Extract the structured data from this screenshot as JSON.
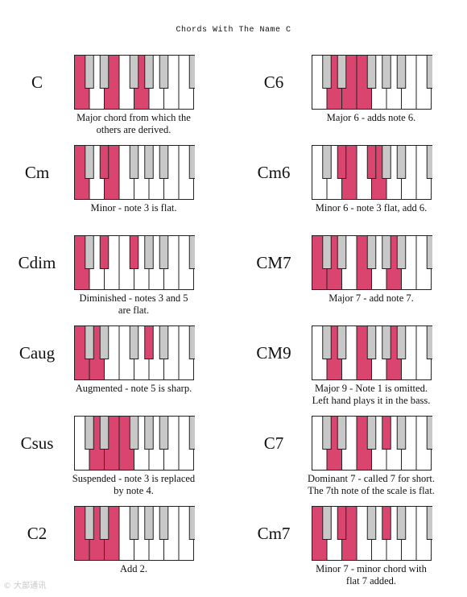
{
  "title": "Chords With The Name C",
  "colors": {
    "highlight": "#d9456e",
    "black_key": "#c8c8c8",
    "white_key": "#ffffff",
    "outline": "#222222"
  },
  "chords": [
    {
      "name": "C",
      "description": [
        "Major chord from which the",
        "others are derived."
      ],
      "white_highlight": [
        0,
        2,
        4
      ],
      "black_highlight": []
    },
    {
      "name": "C6",
      "description": [
        "Major 6 - adds note 6."
      ],
      "white_highlight": [
        1,
        2,
        3
      ],
      "black_highlight": []
    },
    {
      "name": "Cm",
      "description": [
        "Minor - note 3 is flat."
      ],
      "white_highlight": [
        0,
        2
      ],
      "black_highlight": [
        1
      ]
    },
    {
      "name": "Cm6",
      "description": [
        "Minor 6 - note 3 flat, add 6."
      ],
      "white_highlight": [
        2,
        4
      ],
      "black_highlight": [
        1,
        2
      ]
    },
    {
      "name": "Cdim",
      "description": [
        "Diminished - notes 3 and 5",
        "are flat."
      ],
      "white_highlight": [
        0
      ],
      "black_highlight": [
        1,
        2
      ]
    },
    {
      "name": "CM7",
      "description": [
        "Major 7 - add note 7."
      ],
      "white_highlight": [
        0,
        1,
        3,
        5
      ],
      "black_highlight": []
    },
    {
      "name": "Caug",
      "description": [
        "Augmented - note 5 is sharp."
      ],
      "white_highlight": [
        0,
        1
      ],
      "black_highlight": [
        3
      ]
    },
    {
      "name": "CM9",
      "description": [
        "Major 9 - Note 1 is omitted.",
        "Left hand plays it in the bass."
      ],
      "white_highlight": [
        1,
        3,
        5
      ],
      "black_highlight": []
    },
    {
      "name": "Csus",
      "description": [
        "Suspended - note 3 is replaced",
        "by note 4."
      ],
      "white_highlight": [
        1,
        2,
        3
      ],
      "black_highlight": []
    },
    {
      "name": "C7",
      "description": [
        "Dominant 7 - called 7 for short.",
        "The 7th note of the scale is flat."
      ],
      "white_highlight": [
        1,
        3
      ],
      "black_highlight": [
        3
      ]
    },
    {
      "name": "C2",
      "description": [
        "Add 2."
      ],
      "white_highlight": [
        0,
        1,
        2
      ],
      "black_highlight": []
    },
    {
      "name": "Cm7",
      "description": [
        "Minor 7 - minor chord with",
        "flat 7 added."
      ],
      "white_highlight": [
        0,
        2
      ],
      "black_highlight": [
        1,
        3
      ]
    }
  ],
  "watermark": "© 大部通讯"
}
